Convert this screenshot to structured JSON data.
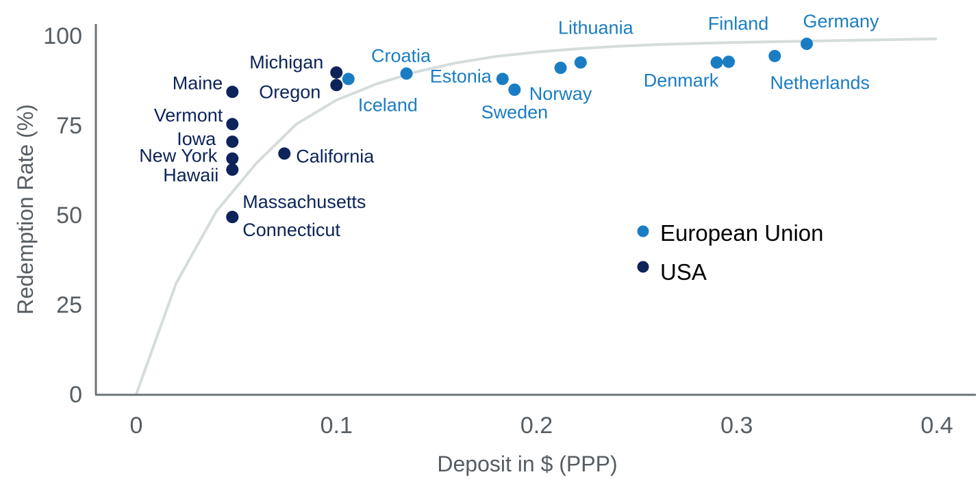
{
  "chart_data": {
    "type": "scatter",
    "title": "",
    "xlabel": "Deposit in $ (PPP)",
    "ylabel": "Redemption Rate (%)",
    "xlim": [
      -0.02,
      0.42
    ],
    "ylim": [
      0,
      100
    ],
    "x_ticks": [
      0,
      0.1,
      0.2,
      0.3,
      0.4
    ],
    "x_tick_labels": [
      "0",
      "0.1",
      "0.2",
      "0.3",
      "0.4"
    ],
    "y_ticks": [
      0,
      25,
      50,
      75,
      100
    ],
    "y_tick_labels": [
      "0",
      "25",
      "50",
      "75",
      "100"
    ],
    "grid": false,
    "legend_position": "center-right",
    "colors": {
      "eu": "#1a7dc4",
      "usa": "#0d2359",
      "trend": "#d5dcdc",
      "axis": "#6b7479",
      "text": "#555d63"
    },
    "series": [
      {
        "name": "European Union",
        "key": "eu",
        "points": [
          {
            "label": "Iceland",
            "x": 0.106,
            "y": 87.9
          },
          {
            "label": "Croatia",
            "x": 0.135,
            "y": 89.4
          },
          {
            "label": "Estonia",
            "x": 0.183,
            "y": 87.9
          },
          {
            "label": "Sweden",
            "x": 0.189,
            "y": 84.9
          },
          {
            "label": "Norway",
            "x": 0.212,
            "y": 91.0
          },
          {
            "label": "Lithuania",
            "x": 0.222,
            "y": 92.5
          },
          {
            "label": "Denmark",
            "x": 0.29,
            "y": 92.5
          },
          {
            "label": "Finland",
            "x": 0.296,
            "y": 92.7
          },
          {
            "label": "Netherlands",
            "x": 0.319,
            "y": 94.3
          },
          {
            "label": "Germany",
            "x": 0.335,
            "y": 97.7
          }
        ]
      },
      {
        "name": "USA",
        "key": "usa",
        "points": [
          {
            "label": "Maine",
            "x": 0.048,
            "y": 84.3
          },
          {
            "label": "Vermont",
            "x": 0.048,
            "y": 75.3
          },
          {
            "label": "Iowa",
            "x": 0.048,
            "y": 70.4
          },
          {
            "label": "New York",
            "x": 0.048,
            "y": 65.7
          },
          {
            "label": "Hawaii",
            "x": 0.048,
            "y": 62.6
          },
          {
            "label": "Massachusetts",
            "x": 0.048,
            "y": 49.4
          },
          {
            "label": "Connecticut",
            "x": 0.048,
            "y": 49.4
          },
          {
            "label": "California",
            "x": 0.074,
            "y": 67.1
          },
          {
            "label": "Michigan",
            "x": 0.1,
            "y": 89.7
          },
          {
            "label": "Oregon",
            "x": 0.1,
            "y": 86.2
          }
        ]
      }
    ],
    "trend_line": {
      "x": [
        0,
        0.02,
        0.04,
        0.06,
        0.08,
        0.1,
        0.12,
        0.14,
        0.16,
        0.18,
        0.2,
        0.22,
        0.24,
        0.26,
        0.28,
        0.3,
        0.32,
        0.34,
        0.36,
        0.38,
        0.4
      ],
      "y": [
        0,
        31,
        51,
        64.4,
        75.3,
        82,
        86.5,
        89.9,
        92.4,
        94.2,
        95.4,
        96.3,
        97.0,
        97.5,
        97.8,
        98.1,
        98.3,
        98.5,
        98.7,
        98.9,
        99.1
      ]
    }
  }
}
